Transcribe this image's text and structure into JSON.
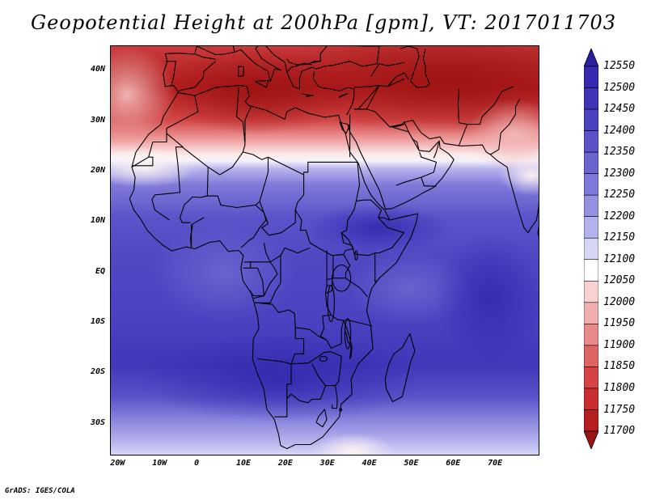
{
  "title": "Geopotential Height at 200hPa [gpm], VT: 2017011703",
  "credit": "GrADS: IGES/COLA",
  "y_axis": {
    "ticks": [
      {
        "label": "40N",
        "lat": 40
      },
      {
        "label": "30N",
        "lat": 30
      },
      {
        "label": "20N",
        "lat": 20
      },
      {
        "label": "10N",
        "lat": 10
      },
      {
        "label": "EQ",
        "lat": 0
      },
      {
        "label": "10S",
        "lat": -10
      },
      {
        "label": "20S",
        "lat": -20
      },
      {
        "label": "30S",
        "lat": -30
      }
    ]
  },
  "x_axis": {
    "ticks": [
      {
        "label": "20W",
        "lon": -20
      },
      {
        "label": "10W",
        "lon": -10
      },
      {
        "label": "0",
        "lon": 0
      },
      {
        "label": "10E",
        "lon": 10
      },
      {
        "label": "20E",
        "lon": 20
      },
      {
        "label": "30E",
        "lon": 30
      },
      {
        "label": "40E",
        "lon": 40
      },
      {
        "label": "50E",
        "lon": 50
      },
      {
        "label": "60E",
        "lon": 60
      },
      {
        "label": "70E",
        "lon": 70
      }
    ]
  },
  "map_extent": {
    "lon_min": -22,
    "lon_max": 80,
    "lat_min": -36,
    "lat_max": 45
  },
  "colorbar": {
    "levels": [
      "12550",
      "12500",
      "12450",
      "12400",
      "12350",
      "12300",
      "12250",
      "12200",
      "12150",
      "12100",
      "12050",
      "12000",
      "11950",
      "11900",
      "11850",
      "11800",
      "11750",
      "11700"
    ],
    "colors": [
      "#2a1f9e",
      "#3628b0",
      "#3f34b8",
      "#4a42c0",
      "#5952c8",
      "#6a64d0",
      "#7c79d8",
      "#9592e2",
      "#b3b2ec",
      "#d7d7f5",
      "#ffffff",
      "#f7d2d2",
      "#f0aeae",
      "#e88a8a",
      "#df6363",
      "#d64343",
      "#c92d2d",
      "#b51f1f",
      "#9b1515"
    ],
    "extend": "both"
  },
  "field_colors": {
    "deep_red": "#a41515",
    "red": "#c72a2a",
    "light_red": "#e27777",
    "pink": "#f4c0c0",
    "white": "#f8f4f8",
    "pale_blue": "#b7b3ec",
    "light_blue": "#8884dc",
    "blue": "#5a53c9",
    "mid_blue": "#4a42c0",
    "dark_blue": "#3b31b3"
  }
}
